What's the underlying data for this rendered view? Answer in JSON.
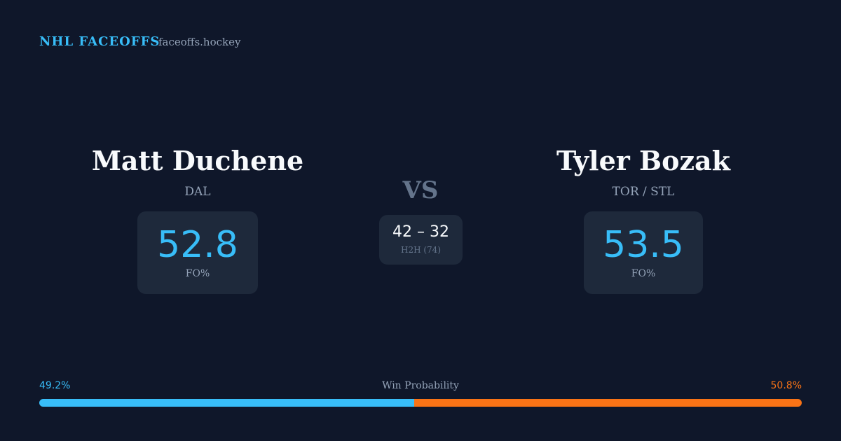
{
  "header": {
    "brand": "NHL FACEOFFS",
    "site": "faceoffs.hockey"
  },
  "left_player": {
    "name": "Matt Duchene",
    "team": "DAL",
    "stat_value": "52.8",
    "stat_label": "FO%"
  },
  "vs": "VS",
  "head_to_head": {
    "score": "42 – 32",
    "label": "H2H (74)"
  },
  "right_player": {
    "name": "Tyler Bozak",
    "team": "TOR / STL",
    "stat_value": "53.5",
    "stat_label": "FO%"
  },
  "win_probability": {
    "title": "Win Probability",
    "left": {
      "value": 49.2,
      "label": "49.2%",
      "color": "#38bdf8"
    },
    "right": {
      "value": 50.8,
      "label": "50.8%",
      "color": "#f97316"
    }
  }
}
